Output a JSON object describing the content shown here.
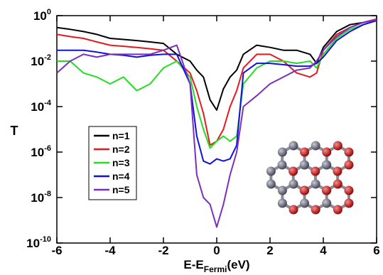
{
  "chart_data": {
    "type": "line",
    "ylabel": "T",
    "xlabel": [
      "E-E",
      "Fermi",
      "(eV)"
    ],
    "log_y": true,
    "legend": "center left",
    "x": [
      -6,
      -5.5,
      -5,
      -4.5,
      -4,
      -3.5,
      -3,
      -2.5,
      -2,
      -1.5,
      -1,
      -0.75,
      -0.5,
      -0.25,
      0,
      0.25,
      0.5,
      0.75,
      1,
      1.5,
      2,
      2.5,
      3,
      3.5,
      3.75,
      4,
      4.5,
      5,
      5.5,
      6
    ],
    "series": [
      {
        "name": "n=1",
        "color": "#000000",
        "values": [
          0.3,
          0.25,
          0.2,
          0.15,
          0.1,
          0.09,
          0.08,
          0.07,
          0.06,
          0.02,
          0.01,
          0.004,
          0.002,
          0.0002,
          7e-05,
          0.0006,
          0.002,
          0.004,
          0.02,
          0.05,
          0.04,
          0.03,
          0.03,
          0.02,
          0.008,
          0.04,
          0.2,
          0.4,
          0.5,
          0.7
        ]
      },
      {
        "name": "n=2",
        "color": "#e41a1c",
        "values": [
          0.15,
          0.12,
          0.1,
          0.07,
          0.05,
          0.045,
          0.04,
          0.035,
          0.03,
          0.01,
          0.003,
          0.0005,
          5e-05,
          2e-06,
          3e-06,
          1e-05,
          0.0001,
          0.0005,
          0.005,
          0.02,
          0.02,
          0.01,
          0.003,
          0.002,
          0.003,
          0.03,
          0.15,
          0.3,
          0.5,
          0.7
        ]
      },
      {
        "name": "n=3",
        "color": "#22dd22",
        "values": [
          0.01,
          0.01,
          0.003,
          0.002,
          0.001,
          0.002,
          0.0005,
          0.001,
          0.005,
          0.01,
          0.002,
          0.0001,
          1e-05,
          1.5e-06,
          3e-06,
          5e-06,
          3e-06,
          5e-06,
          0.001,
          0.005,
          0.01,
          0.01,
          0.008,
          0.01,
          0.005,
          0.02,
          0.1,
          0.25,
          0.4,
          0.6
        ]
      },
      {
        "name": "n=4",
        "color": "#1010e0",
        "values": [
          0.03,
          0.03,
          0.03,
          0.025,
          0.02,
          0.018,
          0.015,
          0.018,
          0.02,
          0.02,
          0.001,
          5e-06,
          4e-07,
          3e-07,
          5e-07,
          4e-07,
          5e-07,
          2e-06,
          0.003,
          0.008,
          0.008,
          0.007,
          0.006,
          0.006,
          0.008,
          0.015,
          0.08,
          0.2,
          0.4,
          0.6
        ]
      },
      {
        "name": "n=5",
        "color": "#7b2fbe",
        "values": [
          0.003,
          0.01,
          0.02,
          0.015,
          0.02,
          0.02,
          0.02,
          0.02,
          0.03,
          0.05,
          0.001,
          1e-07,
          1e-08,
          5e-09,
          5e-10,
          5e-09,
          1e-07,
          1e-06,
          0.0001,
          0.0003,
          0.001,
          0.002,
          0.004,
          0.005,
          0.01,
          0.03,
          0.12,
          0.3,
          0.5,
          0.65
        ]
      }
    ],
    "xlim": [
      -6,
      6
    ],
    "xticks": [
      -6,
      -4,
      -2,
      0,
      2,
      4,
      6
    ],
    "ylim": [
      1e-10,
      1
    ],
    "yticks": [
      {
        "value": 1,
        "label": "10",
        "exponent": "0"
      },
      {
        "value": 0.01,
        "label": "10",
        "exponent": "-2"
      },
      {
        "value": 0.0001,
        "label": "10",
        "exponent": "-4"
      },
      {
        "value": 1e-06,
        "label": "10",
        "exponent": "-6"
      },
      {
        "value": 1e-08,
        "label": "10",
        "exponent": "-8"
      },
      {
        "value": 1e-10,
        "label": "10",
        "exponent": "-10"
      }
    ]
  }
}
